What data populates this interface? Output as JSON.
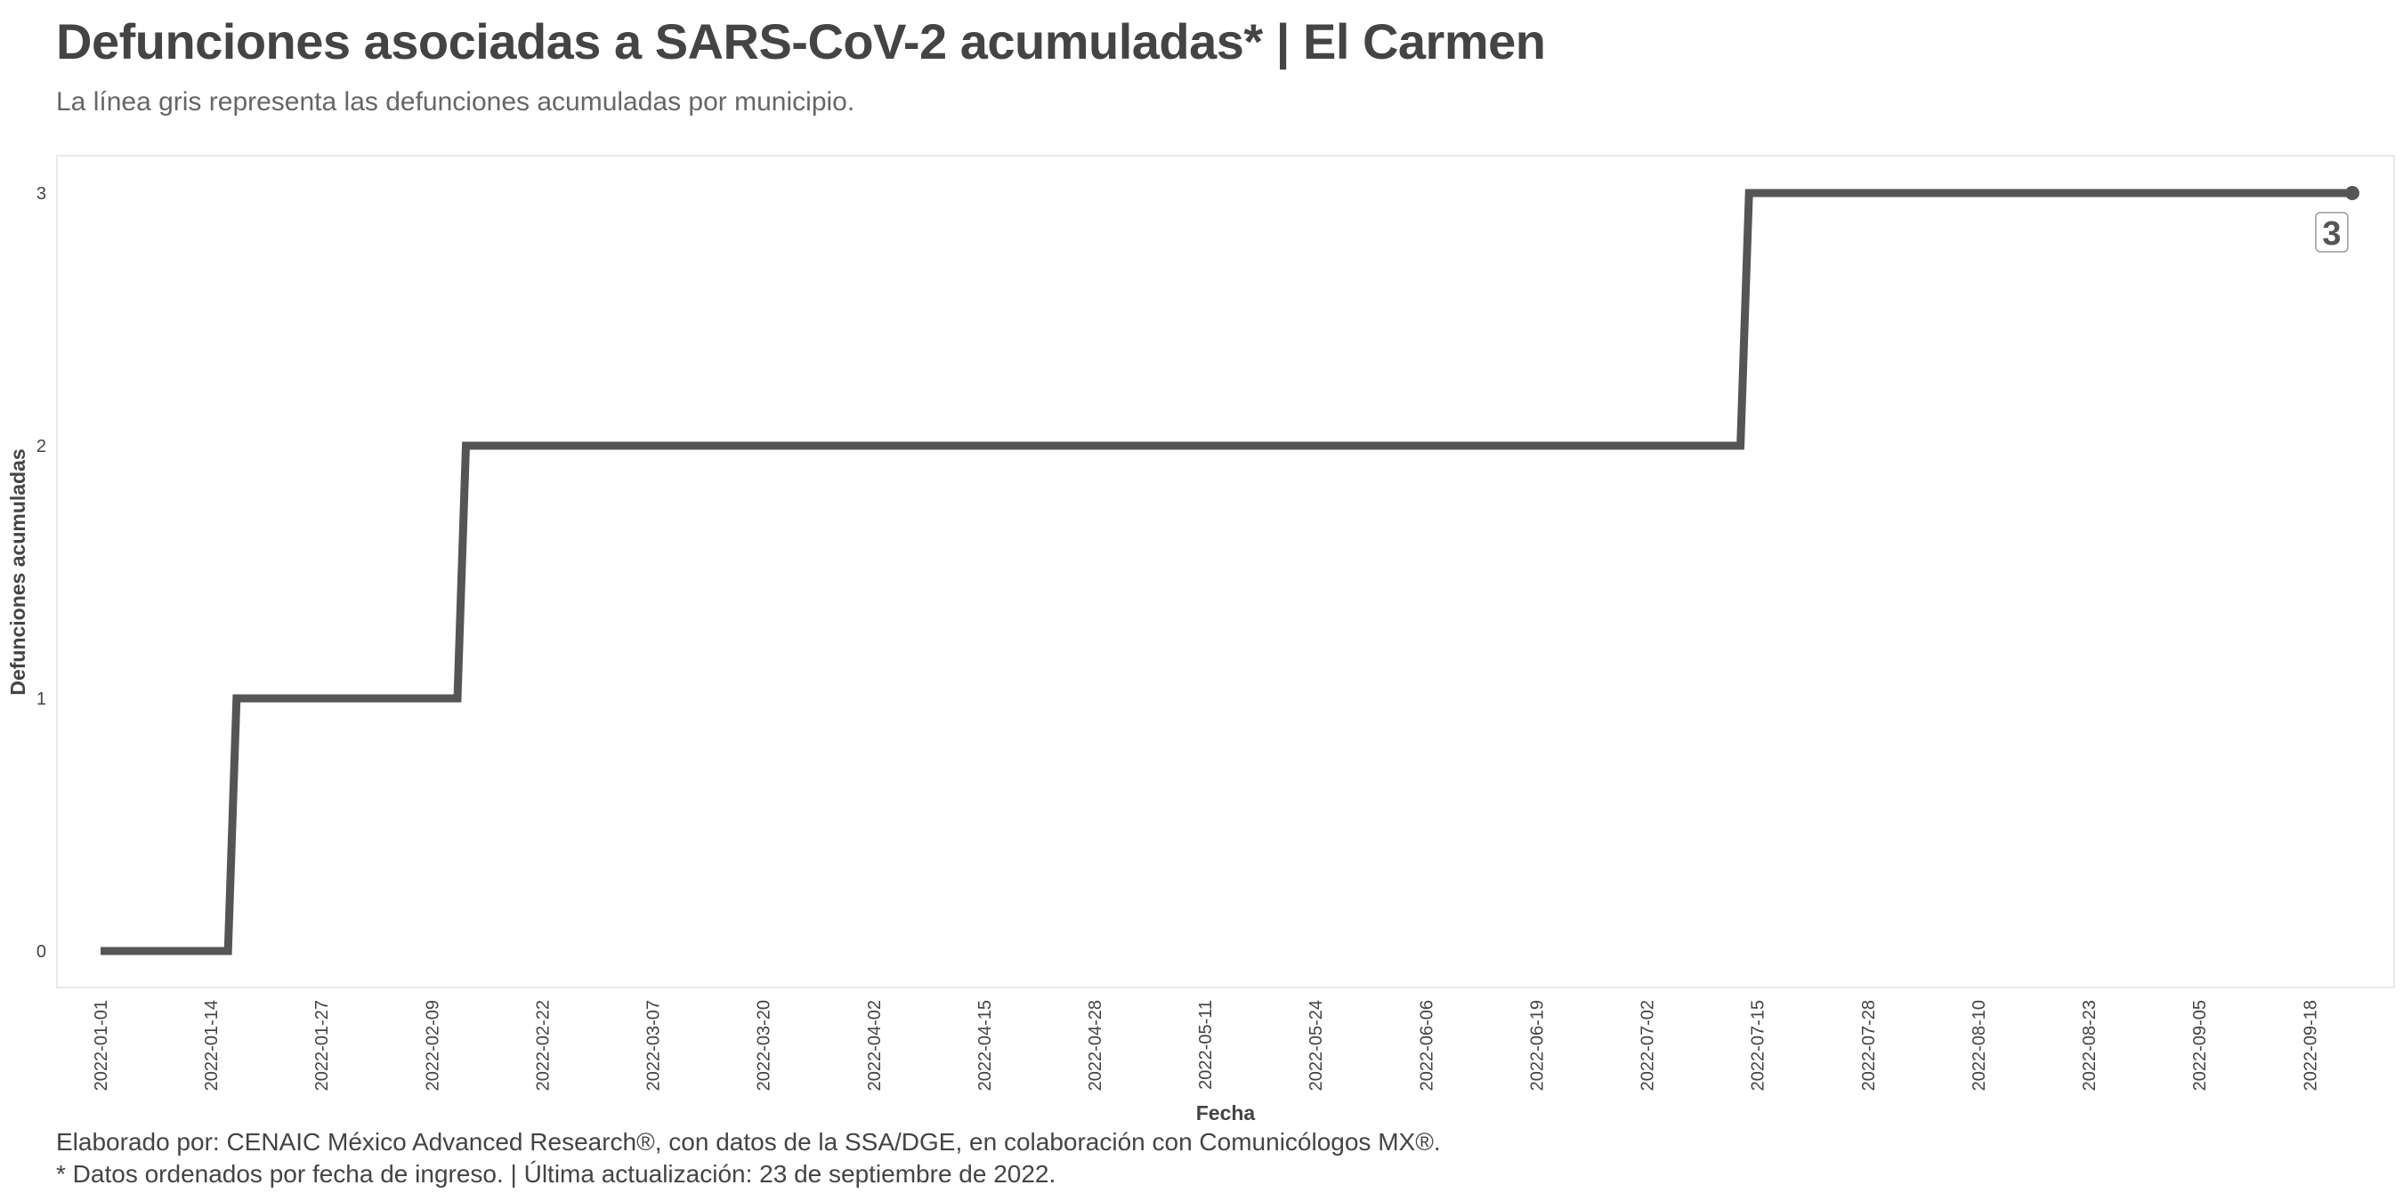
{
  "header": {
    "title": "Defunciones asociadas a SARS-CoV-2 acumuladas* | El Carmen",
    "subtitle": "La línea gris representa las defunciones acumuladas por municipio."
  },
  "footer": {
    "line1": "Elaborado por: CENAIC México Advanced Research®, con datos de la SSA/DGE, en colaboración con Comunicólogos MX®.",
    "line2": "* Datos ordenados por fecha de ingreso. | Última actualización: 23 de septiembre de 2022."
  },
  "colors": {
    "line": "#555555",
    "panel_border": "#e8e8e8",
    "text": "#444444"
  },
  "chart_data": {
    "type": "line",
    "step": true,
    "xlabel": "Fecha",
    "ylabel": "Defunciones acumuladas",
    "x_tick_labels": [
      "2022-01-01",
      "2022-01-14",
      "2022-01-27",
      "2022-02-09",
      "2022-02-22",
      "2022-03-07",
      "2022-03-20",
      "2022-04-02",
      "2022-04-15",
      "2022-04-28",
      "2022-05-11",
      "2022-05-24",
      "2022-06-06",
      "2022-06-19",
      "2022-07-02",
      "2022-07-15",
      "2022-07-28",
      "2022-08-10",
      "2022-08-23",
      "2022-09-05",
      "2022-09-18"
    ],
    "y_ticks": [
      0,
      1,
      2,
      3
    ],
    "xlim": [
      "2022-01-01",
      "2022-09-23"
    ],
    "ylim": [
      0,
      3
    ],
    "series": [
      {
        "x": [
          "2022-01-01",
          "2022-01-16",
          "2022-01-17",
          "2022-02-12",
          "2022-02-13",
          "2022-07-13",
          "2022-07-14",
          "2022-09-23"
        ],
        "y": [
          0,
          0,
          1,
          1,
          2,
          2,
          3,
          3
        ]
      }
    ],
    "end_label": "3",
    "grid": false,
    "legend": "none"
  }
}
